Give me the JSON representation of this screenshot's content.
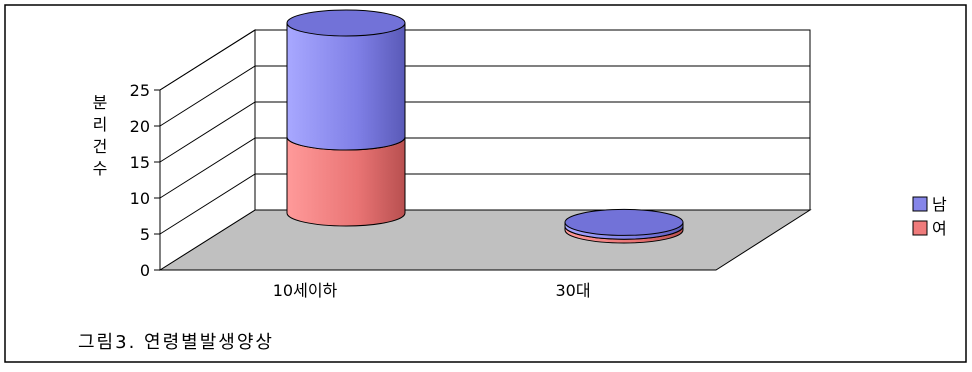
{
  "caption": "그림3. 연령별발생양상",
  "chart_data": {
    "type": "bar",
    "style": "3d-stacked-cylinder",
    "categories": [
      "10세이하",
      "30대"
    ],
    "series": [
      {
        "name": "여",
        "values": [
          10,
          0.5
        ],
        "color": "#ef7b7b"
      },
      {
        "name": "남",
        "values": [
          15,
          0.5
        ],
        "color": "#8585e8"
      }
    ],
    "ylabel": "분리건수",
    "yticks": [
      "0",
      "5",
      "10",
      "15",
      "20",
      "25"
    ],
    "ylim": [
      0,
      25
    ],
    "legend": "right",
    "grid": true,
    "floor_color": "#c0c0c0"
  }
}
